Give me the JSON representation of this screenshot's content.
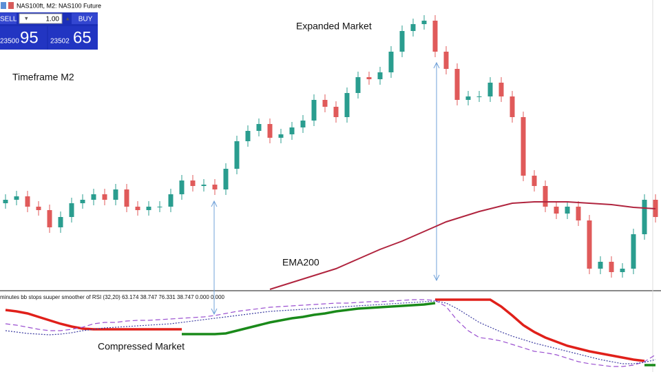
{
  "toolbar": {
    "symbol": "NAS100ft, M2: NAS100 Future",
    "sell_label": "SELL",
    "lot": "1.00",
    "buy_label": "BUY",
    "sell_price_small": "23500",
    "sell_price_big": "95",
    "buy_price_small": "23502",
    "buy_price_big": "65"
  },
  "chart_data": [
    {
      "type": "candlestick",
      "annotations": [
        "Timeframe M2",
        "Expanded Market"
      ],
      "up_color": "#2a9d8f",
      "down_color": "#e05a5a",
      "ylim": [
        0,
        420
      ],
      "open": [
        125,
        130,
        135,
        120,
        115,
        90,
        105,
        125,
        130,
        138,
        130,
        145,
        120,
        115,
        120,
        120,
        138,
        158,
        150,
        152,
        145,
        175,
        215,
        230,
        240,
        220,
        225,
        235,
        245,
        275,
        265,
        250,
        285,
        308,
        305,
        315,
        345,
        375,
        385,
        390,
        345,
        320,
        275,
        280,
        280,
        300,
        280,
        250,
        165,
        150,
        120,
        110,
        120,
        100,
        30,
        40,
        25,
        30,
        80,
        130
      ],
      "high": [
        138,
        143,
        143,
        128,
        123,
        113,
        133,
        138,
        146,
        146,
        153,
        153,
        128,
        128,
        128,
        146,
        166,
        166,
        160,
        160,
        183,
        223,
        238,
        248,
        248,
        233,
        243,
        253,
        283,
        283,
        273,
        293,
        316,
        316,
        323,
        353,
        383,
        393,
        398,
        398,
        353,
        328,
        288,
        288,
        308,
        308,
        288,
        258,
        173,
        158,
        128,
        128,
        128,
        108,
        48,
        48,
        38,
        88,
        138,
        138
      ],
      "low": [
        117,
        122,
        112,
        107,
        82,
        82,
        97,
        117,
        122,
        122,
        122,
        112,
        107,
        107,
        112,
        112,
        130,
        142,
        142,
        137,
        137,
        167,
        207,
        222,
        212,
        212,
        217,
        227,
        237,
        257,
        242,
        242,
        277,
        297,
        297,
        307,
        337,
        367,
        377,
        337,
        312,
        267,
        267,
        272,
        272,
        272,
        242,
        157,
        142,
        112,
        102,
        102,
        92,
        22,
        22,
        17,
        17,
        22,
        72,
        97
      ],
      "close": [
        130,
        135,
        120,
        115,
        90,
        105,
        125,
        130,
        138,
        130,
        145,
        120,
        115,
        120,
        120,
        138,
        158,
        150,
        152,
        145,
        175,
        215,
        230,
        240,
        220,
        225,
        235,
        245,
        275,
        265,
        250,
        285,
        308,
        305,
        315,
        345,
        375,
        385,
        390,
        345,
        320,
        275,
        280,
        280,
        300,
        280,
        250,
        165,
        150,
        120,
        110,
        120,
        100,
        30,
        40,
        25,
        30,
        80,
        130,
        105
      ],
      "series": [
        {
          "name": "EMA200",
          "color": "#b0243e",
          "values": [
            null,
            null,
            null,
            null,
            null,
            null,
            null,
            null,
            null,
            null,
            null,
            null,
            null,
            null,
            null,
            null,
            null,
            null,
            null,
            null,
            null,
            null,
            null,
            null,
            0,
            5,
            10,
            15,
            20,
            25,
            30,
            37,
            44,
            51,
            58,
            64,
            70,
            77,
            84,
            91,
            98,
            103,
            108,
            113,
            117,
            121,
            125,
            126,
            127,
            127,
            127,
            127,
            126,
            125,
            124,
            123,
            121,
            119,
            118,
            117
          ]
        }
      ]
    },
    {
      "type": "line",
      "title": "minutes bb stops suuper smoother of RSI (32,20) 63.174 38.747 76.331 38.747 0.000 0.000",
      "annotations": [
        "Compressed Market"
      ],
      "ylim": [
        0,
        116
      ],
      "series": [
        {
          "color": "#e0201a",
          "style": "solid",
          "values": [
            90,
            88,
            85,
            80,
            75,
            70,
            66,
            63,
            62,
            62,
            62,
            62,
            62,
            62,
            62,
            62,
            62,
            null,
            null,
            null,
            null,
            null,
            null,
            null,
            null,
            null,
            null,
            null,
            null,
            null,
            null,
            null,
            null,
            null,
            null,
            null,
            null,
            null,
            null,
            105,
            105,
            105,
            105,
            105,
            105,
            95,
            82,
            68,
            58,
            50,
            44,
            38,
            34,
            30,
            27,
            24,
            21,
            18,
            16,
            null
          ]
        },
        {
          "color": "#1a8a1a",
          "style": "solid",
          "values": [
            null,
            null,
            null,
            null,
            null,
            null,
            null,
            null,
            null,
            null,
            null,
            null,
            null,
            null,
            null,
            null,
            55,
            55,
            55,
            55,
            56,
            60,
            64,
            68,
            72,
            75,
            78,
            80,
            83,
            85,
            88,
            90,
            92,
            93,
            94,
            95,
            96,
            97,
            98,
            100,
            null,
            null,
            null,
            null,
            null,
            null,
            null,
            null,
            null,
            null,
            null,
            null,
            null,
            null,
            null,
            null,
            null,
            null,
            10,
            10
          ]
        },
        {
          "color": "#9a4fd0",
          "style": "dashed",
          "values": [
            70,
            68,
            65,
            62,
            60,
            60,
            62,
            65,
            70,
            72,
            72,
            74,
            75,
            75,
            76,
            77,
            78,
            79,
            80,
            82,
            85,
            88,
            90,
            92,
            94,
            95,
            96,
            97,
            98,
            99,
            100,
            100,
            101,
            102,
            102,
            103,
            104,
            105,
            105,
            104,
            95,
            75,
            60,
            50,
            48,
            45,
            40,
            35,
            30,
            28,
            25,
            20,
            15,
            12,
            10,
            8,
            8,
            10,
            15,
            25
          ]
        },
        {
          "color": "#3a3aa0",
          "style": "dotted",
          "values": [
            60,
            58,
            56,
            55,
            54,
            55,
            57,
            60,
            62,
            64,
            65,
            66,
            67,
            68,
            69,
            70,
            72,
            74,
            76,
            78,
            80,
            82,
            84,
            86,
            88,
            89,
            90,
            91,
            92,
            93,
            94,
            95,
            96,
            97,
            98,
            99,
            100,
            101,
            102,
            103,
            100,
            92,
            82,
            72,
            65,
            58,
            52,
            47,
            42,
            38,
            34,
            30,
            26,
            22,
            18,
            15,
            12,
            12,
            14,
            18
          ]
        }
      ]
    }
  ]
}
